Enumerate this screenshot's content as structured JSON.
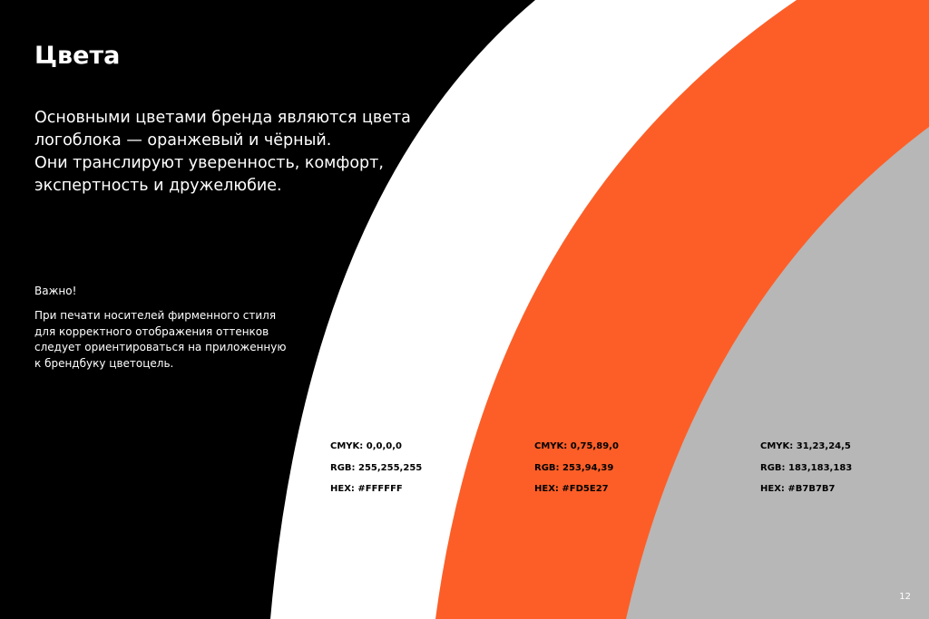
{
  "title": "Цвета",
  "lead": [
    "Основными цветами бренда  являются цвета",
    "логоблока — оранжевый и чёрный.",
    "Они транслируют уверенность, комфорт,",
    "экспертность и дружелюбие."
  ],
  "note_heading": "Важно!",
  "note": [
    "При печати носителей фирменного стиля",
    "для корректного отображения оттенков",
    "следует ориентироваться на приложенную",
    "к брендбуку цветоцель."
  ],
  "colors": {
    "background": "#000000",
    "white": {
      "hex": "#FFFFFF",
      "cmyk": "CMYK: 0,0,0,0",
      "rgb": "RGB: 255,255,255",
      "hex_label": "HEX: #FFFFFF"
    },
    "orange": {
      "hex": "#FD5E27",
      "cmyk": "CMYK: 0,75,89,0",
      "rgb": "RGB: 253,94,39",
      "hex_label": "HEX: #FD5E27"
    },
    "gray": {
      "hex": "#B7B7B7",
      "cmyk": "CMYK: 31,23,24,5",
      "rgb": "RGB: 183,183,183",
      "hex_label": "HEX: #B7B7B7"
    }
  },
  "page_number": "12"
}
